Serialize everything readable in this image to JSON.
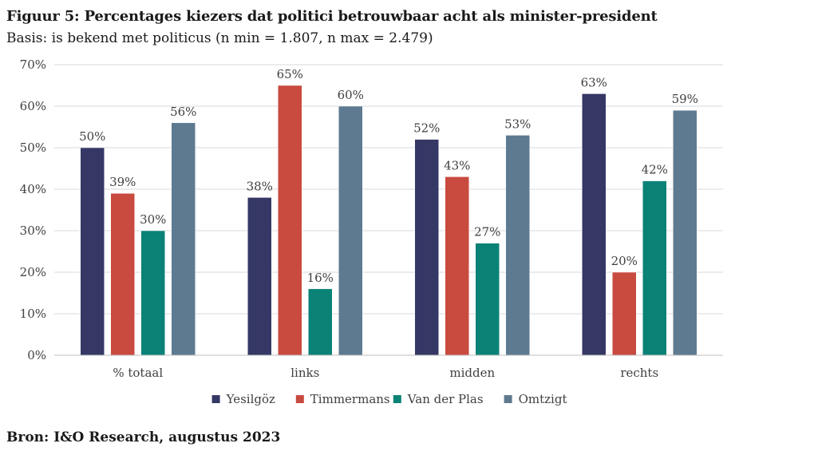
{
  "chart_data": {
    "type": "bar",
    "title": "Figuur 5: Percentages kiezers dat politici betrouwbaar acht als minister-president",
    "subtitle": "Basis: is bekend met politicus (n min = 1.807, n max = 2.479)",
    "source": "Bron: I&O Research, augustus 2023",
    "categories": [
      "% totaal",
      "links",
      "midden",
      "rechts"
    ],
    "series": [
      {
        "name": "Yesilgöz",
        "color": "#353865",
        "values": [
          50,
          38,
          52,
          63
        ]
      },
      {
        "name": "Timmermans",
        "color": "#c94a3f",
        "values": [
          39,
          65,
          43,
          20
        ]
      },
      {
        "name": "Van der Plas",
        "color": "#0b8276",
        "values": [
          30,
          16,
          27,
          42
        ]
      },
      {
        "name": "Omtzigt",
        "color": "#5e7a90",
        "values": [
          56,
          60,
          53,
          59
        ]
      }
    ],
    "y_ticks": [
      "0%",
      "10%",
      "20%",
      "30%",
      "40%",
      "50%",
      "60%",
      "70%"
    ],
    "ylim": [
      0,
      70
    ],
    "value_suffix": "%",
    "grid": true,
    "legend": "bottom"
  }
}
